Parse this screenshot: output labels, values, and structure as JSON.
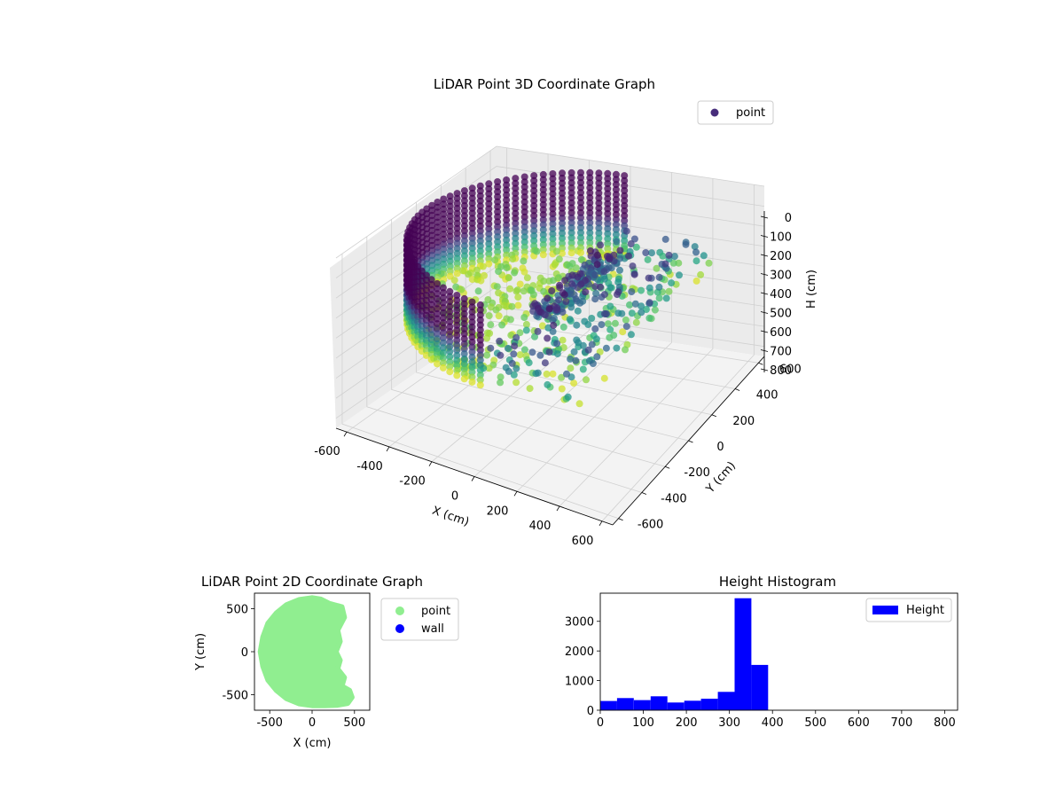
{
  "chart_data": [
    {
      "type": "scatter3d",
      "title": "LiDAR Point 3D Coordinate Graph",
      "xlabel": "X (cm)",
      "ylabel": "Y (cm)",
      "zlabel": "H (cm)",
      "xlim": [
        -650,
        650
      ],
      "ylim": [
        -650,
        650
      ],
      "zlim": [
        0,
        850
      ],
      "z_inverted": true,
      "x_ticks": [
        "-600",
        "-400",
        "-200",
        "0",
        "200",
        "400",
        "600"
      ],
      "y_ticks": [
        "-600",
        "-400",
        "-200",
        "0",
        "200",
        "400",
        "600"
      ],
      "z_ticks": [
        "0",
        "100",
        "200",
        "300",
        "400",
        "500",
        "600",
        "700",
        "800"
      ],
      "grid": true,
      "colormap": "viridis",
      "legend": {
        "placement": "upper-right",
        "entries": [
          "point"
        ]
      },
      "series": [
        {
          "name": "point",
          "color": "#472d7b",
          "shape": "half-cylinder shell of points covering x from -600 to 0, radius ~600 cm, heights 0 to ~420 cm; cluster of returns near x 0 to 450, heights 250 to 420",
          "sample_points": [
            [
              -600,
              0,
              350
            ],
            [
              -520,
              300,
              350
            ],
            [
              -300,
              520,
              350
            ],
            [
              0,
              600,
              350
            ],
            [
              -520,
              -300,
              350
            ],
            [
              -300,
              -520,
              350
            ],
            [
              0,
              -600,
              350
            ],
            [
              -600,
              0,
              100
            ],
            [
              -420,
              420,
              100
            ],
            [
              -420,
              -420,
              100
            ],
            [
              100,
              100,
              300
            ],
            [
              200,
              -100,
              320
            ],
            [
              300,
              200,
              330
            ],
            [
              350,
              -300,
              380
            ],
            [
              150,
              -450,
              400
            ],
            [
              50,
              0,
              260
            ]
          ]
        }
      ]
    },
    {
      "type": "scatter",
      "title": "LiDAR Point 2D Coordinate Graph",
      "xlabel": "X (cm)",
      "ylabel": "Y (cm)",
      "xlim": [
        -680,
        680
      ],
      "ylim": [
        -680,
        680
      ],
      "x_ticks": [
        -500,
        0,
        500
      ],
      "y_ticks": [
        -500,
        0,
        500
      ],
      "grid": false,
      "legend": {
        "placement": "outside-right",
        "entries": [
          "point",
          "wall"
        ]
      },
      "series": [
        {
          "name": "point",
          "color": "#90ee90",
          "boundary": [
            [
              0,
              625
            ],
            [
              -150,
              605
            ],
            [
              -300,
              545
            ],
            [
              -420,
              450
            ],
            [
              -520,
              330
            ],
            [
              -580,
              170
            ],
            [
              -610,
              0
            ],
            [
              -580,
              -170
            ],
            [
              -520,
              -330
            ],
            [
              -420,
              -450
            ],
            [
              -300,
              -545
            ],
            [
              -150,
              -605
            ],
            [
              0,
              -625
            ],
            [
              150,
              -625
            ],
            [
              300,
              -620
            ],
            [
              420,
              -600
            ],
            [
              470,
              -530
            ],
            [
              440,
              -450
            ],
            [
              350,
              -400
            ],
            [
              380,
              -300
            ],
            [
              300,
              -200
            ],
            [
              330,
              -100
            ],
            [
              280,
              0
            ],
            [
              330,
              120
            ],
            [
              300,
              250
            ],
            [
              380,
              400
            ],
            [
              350,
              520
            ],
            [
              200,
              560
            ],
            [
              100,
              610
            ]
          ]
        },
        {
          "name": "wall",
          "color": "#0000ff",
          "points": []
        }
      ]
    },
    {
      "type": "bar",
      "title": "Height Histogram",
      "xlabel": "",
      "ylabel": "",
      "xlim": [
        0,
        830
      ],
      "ylim": [
        0,
        3950
      ],
      "x_ticks": [
        0,
        100,
        200,
        300,
        400,
        500,
        600,
        700,
        800
      ],
      "y_ticks": [
        0,
        1000,
        2000,
        3000
      ],
      "legend": {
        "placement": "upper-right",
        "entries": [
          "Height"
        ]
      },
      "series": [
        {
          "name": "Height",
          "color": "#0000ff"
        }
      ],
      "bin_width": 39,
      "bins": [
        {
          "x0": 0,
          "x1": 39,
          "count": 310
        },
        {
          "x0": 39,
          "x1": 78,
          "count": 410
        },
        {
          "x0": 78,
          "x1": 117,
          "count": 340
        },
        {
          "x0": 117,
          "x1": 156,
          "count": 470
        },
        {
          "x0": 156,
          "x1": 195,
          "count": 260
        },
        {
          "x0": 195,
          "x1": 234,
          "count": 320
        },
        {
          "x0": 234,
          "x1": 273,
          "count": 390
        },
        {
          "x0": 273,
          "x1": 312,
          "count": 620
        },
        {
          "x0": 312,
          "x1": 351,
          "count": 3780
        },
        {
          "x0": 351,
          "x1": 390,
          "count": 1530
        }
      ]
    }
  ]
}
